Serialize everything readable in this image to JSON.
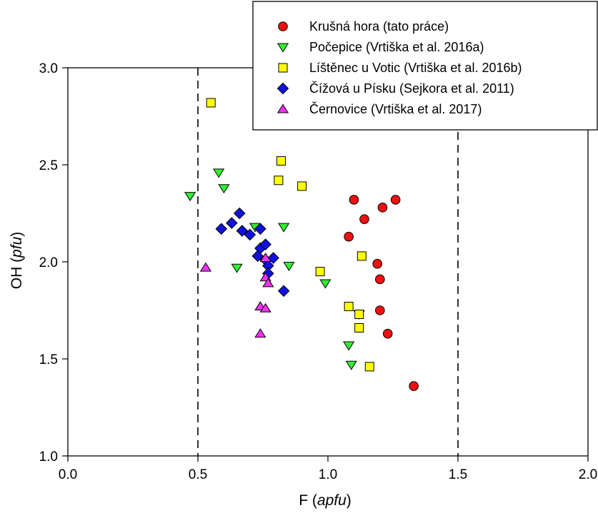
{
  "chart_data": {
    "type": "scatter",
    "xlabel": "F",
    "xlabel_unit": "apfu",
    "ylabel": "OH",
    "ylabel_unit": "pfu",
    "xlim": [
      0.0,
      2.0
    ],
    "ylim": [
      1.0,
      3.0
    ],
    "xticks": [
      "0.0",
      "0.5",
      "1.0",
      "1.5",
      "2.0"
    ],
    "yticks": [
      "1.0",
      "1.5",
      "2.0",
      "2.5",
      "3.0"
    ],
    "reference_lines_x": [
      0.5,
      1.5
    ],
    "grid": false,
    "legend_position": "top-right",
    "series": [
      {
        "name": "Krušná hora (tato práce)",
        "marker": "circle",
        "color": "#ee1111",
        "points": [
          [
            1.1,
            2.32
          ],
          [
            1.26,
            2.32
          ],
          [
            1.21,
            2.28
          ],
          [
            1.14,
            2.22
          ],
          [
            1.08,
            2.13
          ],
          [
            1.19,
            1.99
          ],
          [
            1.2,
            1.91
          ],
          [
            1.2,
            1.75
          ],
          [
            1.23,
            1.63
          ],
          [
            1.33,
            1.36
          ]
        ]
      },
      {
        "name": "Počepice (Vrtiška et al. 2016a)",
        "marker": "triangle-down",
        "color": "#33ee33",
        "points": [
          [
            0.47,
            2.34
          ],
          [
            0.58,
            2.46
          ],
          [
            0.6,
            2.38
          ],
          [
            0.72,
            2.18
          ],
          [
            0.83,
            2.18
          ],
          [
            0.65,
            1.97
          ],
          [
            0.85,
            1.98
          ],
          [
            0.99,
            1.89
          ],
          [
            1.12,
            1.73
          ],
          [
            1.08,
            1.57
          ],
          [
            1.09,
            1.47
          ]
        ]
      },
      {
        "name": "Líštěnec u Votic (Vrtiška et al. 2016b)",
        "marker": "square",
        "color": "#ffff00",
        "points": [
          [
            0.55,
            2.82
          ],
          [
            0.82,
            2.52
          ],
          [
            0.81,
            2.42
          ],
          [
            0.9,
            2.39
          ],
          [
            1.13,
            2.03
          ],
          [
            0.97,
            1.95
          ],
          [
            1.08,
            1.77
          ],
          [
            1.12,
            1.73
          ],
          [
            1.12,
            1.66
          ],
          [
            1.16,
            1.46
          ]
        ]
      },
      {
        "name": "Čížová u Písku (Sejkora et al. 2011)",
        "marker": "diamond",
        "color": "#1111dd",
        "points": [
          [
            0.59,
            2.17
          ],
          [
            0.63,
            2.2
          ],
          [
            0.66,
            2.25
          ],
          [
            0.67,
            2.16
          ],
          [
            0.7,
            2.14
          ],
          [
            0.74,
            2.17
          ],
          [
            0.74,
            2.07
          ],
          [
            0.76,
            2.09
          ],
          [
            0.73,
            2.03
          ],
          [
            0.76,
            2.01
          ],
          [
            0.79,
            2.02
          ],
          [
            0.77,
            1.98
          ],
          [
            0.77,
            1.94
          ],
          [
            0.83,
            1.85
          ]
        ]
      },
      {
        "name": "Černovice (Vrtiška et al. 2017)",
        "marker": "triangle-up",
        "color": "#ee33ee",
        "points": [
          [
            0.53,
            1.97
          ],
          [
            0.76,
            2.02
          ],
          [
            0.76,
            1.92
          ],
          [
            0.77,
            1.89
          ],
          [
            0.74,
            1.77
          ],
          [
            0.76,
            1.76
          ],
          [
            0.74,
            1.63
          ]
        ]
      }
    ]
  }
}
